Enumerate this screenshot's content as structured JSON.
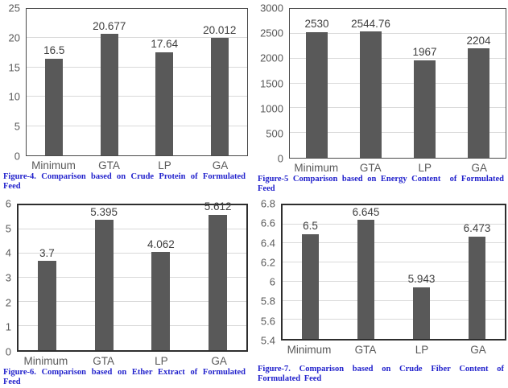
{
  "page": {
    "background": "#ffffff"
  },
  "colors": {
    "bar": "#595959",
    "gridline": "#d9d9d9",
    "plot_border": "#4a4a4a",
    "tick_label": "#595959",
    "category_label": "#595959",
    "value_label": "#3f3f3f",
    "caption": "#2222cc"
  },
  "chart_data": [
    {
      "id": "figure-4",
      "type": "bar",
      "title": "",
      "xlabel": "",
      "ylabel": "",
      "categories": [
        "Minimum",
        "GTA",
        "LP",
        "GA"
      ],
      "values": [
        16.5,
        20.677,
        17.64,
        20.012
      ],
      "value_labels": [
        "16.5",
        "20.677",
        "17.64",
        "20.012"
      ],
      "ylim": [
        0,
        25
      ],
      "yticks": [
        0,
        5,
        10,
        15,
        20,
        25
      ],
      "ytick_labels": [
        "0",
        "5",
        "10",
        "15",
        "20",
        "25"
      ],
      "grid": true,
      "legend": "none",
      "caption": "Figure-4. Comparison based on Crude Protein of Formulated Feed"
    },
    {
      "id": "figure-5",
      "type": "bar",
      "title": "",
      "xlabel": "",
      "ylabel": "",
      "categories": [
        "Minimum",
        "GTA",
        "LP",
        "GA"
      ],
      "values": [
        2530,
        2544.76,
        1967,
        2204
      ],
      "value_labels": [
        "2530",
        "2544.76",
        "1967",
        "2204"
      ],
      "ylim": [
        0,
        3000
      ],
      "yticks": [
        0,
        500,
        1000,
        1500,
        2000,
        2500,
        3000
      ],
      "ytick_labels": [
        "0",
        "500",
        "1000",
        "1500",
        "2000",
        "2500",
        "3000"
      ],
      "grid": true,
      "legend": "none",
      "caption": "Figure-5 Comparison based on Energy Content  of Formulated Feed"
    },
    {
      "id": "figure-6",
      "type": "bar",
      "title": "",
      "xlabel": "",
      "ylabel": "",
      "categories": [
        "Minimum",
        "GTA",
        "LP",
        "GA"
      ],
      "values": [
        3.7,
        5.395,
        4.062,
        5.612
      ],
      "value_labels": [
        "3.7",
        "5.395",
        "4.062",
        "5.612"
      ],
      "ylim": [
        0,
        6
      ],
      "yticks": [
        0,
        1,
        2,
        3,
        4,
        5,
        6
      ],
      "ytick_labels": [
        "0",
        "1",
        "2",
        "3",
        "4",
        "5",
        "6"
      ],
      "grid": true,
      "legend": "none",
      "caption": "Figure-6. Comparison based on Ether Extract of Formulated Feed"
    },
    {
      "id": "figure-7",
      "type": "bar",
      "title": "",
      "xlabel": "",
      "ylabel": "",
      "categories": [
        "Minimum",
        "GTA",
        "LP",
        "GA"
      ],
      "values": [
        6.5,
        6.645,
        5.943,
        6.473
      ],
      "value_labels": [
        "6.5",
        "6.645",
        "5.943",
        "6.473"
      ],
      "ylim": [
        5.4,
        6.8
      ],
      "yticks": [
        5.4,
        5.6,
        5.8,
        6,
        6.2,
        6.4,
        6.6,
        6.8
      ],
      "ytick_labels": [
        "5.4",
        "5.6",
        "5.8",
        "6",
        "6.2",
        "6.4",
        "6.6",
        "6.8"
      ],
      "grid": true,
      "legend": "none",
      "caption": "Figure-7. Comparison based on Crude Fiber Content of Formulated Feed"
    }
  ]
}
